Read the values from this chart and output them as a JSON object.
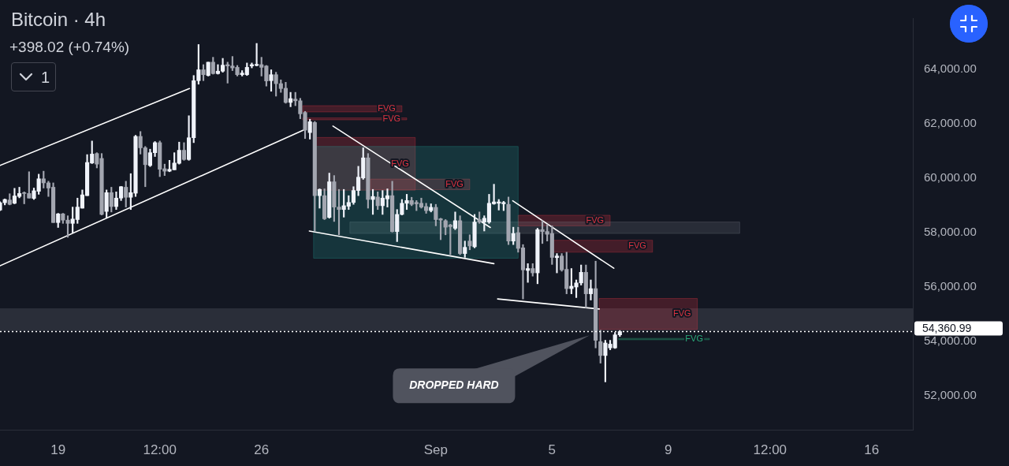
{
  "chart_data": {
    "type": "candlestick",
    "title": "Bitcoin · 4h",
    "subtitle": "+398.02 (+0.74%)",
    "annotations": [
      "1",
      {
        "text": "DROPPED HARD",
        "x": "--09-06T07:00",
        "y": 54220
      }
    ],
    "xlim": [
      "--08-17T00:00",
      "--09-17T10:00"
    ],
    "xticks": [
      {
        "value": "--08-19",
        "label": "19"
      },
      {
        "value": "--08-22T12:00",
        "label": "12:00"
      },
      {
        "value": "--08-26",
        "label": "26"
      },
      {
        "value": "--09-01",
        "label": "Sep"
      },
      {
        "value": "--09-05",
        "label": "5"
      },
      {
        "value": "--09-09",
        "label": "9"
      },
      {
        "value": "--09-12T12:00",
        "label": "12:00"
      },
      {
        "value": "--09-16",
        "label": "16"
      }
    ],
    "ylim": [
      50750,
      65890
    ],
    "yticks": [
      {
        "value": 52000,
        "label": "52,000.00"
      },
      {
        "value": 54000,
        "label": "54,000.00"
      },
      {
        "value": 56000,
        "label": "56,000.00"
      },
      {
        "value": 58000,
        "label": "58,000.00"
      },
      {
        "value": 60000,
        "label": "60,000.00"
      },
      {
        "value": 62000,
        "label": "62,000.00"
      },
      {
        "value": 64000,
        "label": "64,000.00"
      }
    ],
    "bands": [
      {
        "axis": "y",
        "from": 54390,
        "to": 55220,
        "color": "#2a2e39"
      }
    ],
    "ref_lines": [
      {
        "axis": "y",
        "value": 54360.99,
        "label": "54,360.99",
        "line_style": "dotted",
        "color": "#ffffff"
      }
    ],
    "series": [
      {
        "type": "area",
        "name": "FVG",
        "color": "#f23645",
        "x": [
          "--08-27T10:00",
          "--08-30T20:00"
        ],
        "values": [
          null,
          null
        ],
        "lower": [
          62440,
          62440
        ],
        "upper": [
          62670,
          62670
        ]
      },
      {
        "type": "area",
        "name": "FVG",
        "color": "#f23645",
        "x": [
          "--08-27T10:00",
          "--08-31T00:00"
        ],
        "values": [
          null,
          null
        ],
        "lower": [
          62150,
          62150
        ],
        "upper": [
          62220,
          62220
        ]
      },
      {
        "type": "area",
        "name": "FVG",
        "color": "#f23645",
        "x": [
          "--08-27T19:00",
          "--08-31T07:00"
        ],
        "values": [
          null,
          null
        ],
        "lower": [
          59560,
          59560
        ],
        "upper": [
          61500,
          61500
        ]
      },
      {
        "type": "area",
        "name": "FVG",
        "color": "#f23645",
        "x": [
          "--08-29T18:00",
          "--09-02T04:00"
        ],
        "values": [
          null,
          null
        ],
        "lower": [
          59580,
          59580
        ],
        "upper": [
          59970,
          59970
        ]
      },
      {
        "type": "area",
        "name": "FVG",
        "color": "#f23645",
        "x": [
          "--09-03T20:00",
          "--09-07T00:00"
        ],
        "values": [
          null,
          null
        ],
        "lower": [
          58250,
          58250
        ],
        "upper": [
          58640,
          58640
        ]
      },
      {
        "type": "area",
        "name": "FVG",
        "color": "#f23645",
        "x": [
          "--09-05T00:00",
          "--09-08T11:00"
        ],
        "values": [
          null,
          null
        ],
        "lower": [
          57280,
          57280
        ],
        "upper": [
          57720,
          57720
        ]
      },
      {
        "type": "area",
        "name": "FVG",
        "color": "#f23645",
        "x": [
          "--09-06T15:00",
          "--09-10T00:00"
        ],
        "values": [
          null,
          null
        ],
        "lower": [
          54440,
          54440
        ],
        "upper": [
          55580,
          55580
        ]
      },
      {
        "type": "area",
        "name": "FVG",
        "color": "#2ebd85",
        "x": [
          "--09-07T07:00",
          "--09-10T10:00"
        ],
        "values": [
          null,
          null
        ],
        "lower": [
          54060,
          54060
        ],
        "upper": [
          54110,
          54110
        ]
      },
      {
        "type": "area",
        "color": "#787b86",
        "x": [
          "--08-29T01:00",
          "--09-11T11:00"
        ],
        "values": [
          null,
          null
        ],
        "lower": [
          57970,
          57970
        ],
        "upper": [
          58390,
          58390
        ]
      },
      {
        "type": "area",
        "color": "#26a69a",
        "x": [
          "--08-27T19:00",
          "--09-03T20:00"
        ],
        "values": [
          null,
          null
        ],
        "lower": [
          57060,
          57060
        ],
        "upper": [
          61170,
          61170
        ]
      },
      {
        "type": "line",
        "color": "#ffffff",
        "x": [
          "--08-17T00:00",
          "--08-23T12:30"
        ],
        "values": [
          60470,
          63300
        ]
      },
      {
        "type": "line",
        "color": "#ffffff",
        "x": [
          "--08-17T00:00",
          "--08-27T11:00"
        ],
        "values": [
          56780,
          61780
        ]
      },
      {
        "type": "line",
        "color": "#ffffff",
        "x": [
          "--08-28T11:00",
          "--09-02T21:00"
        ],
        "values": [
          61920,
          58190
        ]
      },
      {
        "type": "line",
        "color": "#ffffff",
        "x": [
          "--08-27T15:30",
          "--09-03T00:00"
        ],
        "values": [
          58060,
          56860
        ]
      },
      {
        "type": "line",
        "color": "#ffffff",
        "x": [
          "--09-03T15:30",
          "--09-07T03:00"
        ],
        "values": [
          59170,
          56690
        ]
      },
      {
        "type": "line",
        "color": "#ffffff",
        "x": [
          "--09-03T03:00",
          "--09-06T15:00"
        ],
        "values": [
          55560,
          55190
        ]
      },
      {
        "type": "candlestick",
        "color": "#f0f3fa",
        "x": [
          "--08-17T00:00",
          "--08-17T04:00",
          "--08-17T12:00",
          "--08-17T16:00",
          "--08-18T04:00",
          "--08-18T08:00",
          "--08-19T00:00",
          "--08-19T12:00",
          "--08-19T16:00",
          "--08-19T20:00",
          "--08-20T00:00",
          "--08-20T04:00",
          "--08-20T16:00",
          "--08-21T00:00",
          "--08-21T04:00",
          "--08-21T12:00",
          "--08-21T16:00",
          "--08-22T04:00",
          "--08-22T08:00",
          "--08-22T20:00",
          "--08-23T00:00",
          "--08-23T04:00",
          "--08-23T12:00",
          "--08-23T16:00",
          "--08-23T20:00",
          "--08-24T04:00",
          "--08-24T12:00",
          "--08-24T16:00",
          "--08-25T08:00",
          "--08-25T12:00",
          "--08-25T16:00",
          "--08-25T20:00",
          "--08-26T08:00",
          "--08-27T00:00",
          "--08-27T16:00",
          "--08-28T00:00",
          "--08-28T08:00",
          "--08-28T20:00",
          "--08-29T00:00",
          "--08-29T04:00",
          "--08-29T08:00",
          "--08-29T12:00",
          "--08-29T20:00",
          "--08-30T04:00",
          "--08-30T08:00",
          "--08-30T16:00",
          "--08-30T20:00",
          "--08-31T00:00",
          "--08-31T20:00",
          "--09-01T16:00",
          "--09-02T00:00",
          "--09-02T08:00",
          "--09-02T16:00",
          "--09-02T20:00",
          "--09-03T00:00",
          "--09-03T04:00",
          "--09-03T08:00",
          "--09-03T16:00",
          "--09-04T04:00",
          "--09-04T12:00",
          "--09-05T04:00",
          "--09-05T16:00",
          "--09-05T20:00",
          "--09-06T00:00",
          "--09-06T08:00",
          "--09-06T20:00",
          "--09-07T00:00",
          "--09-07T04:00",
          "--09-07T08:00"
        ],
        "ohlc": [
          [
            58830,
            59140,
            58810,
            59100
          ],
          [
            59100,
            59240,
            59020,
            59220
          ],
          [
            59080,
            59630,
            59060,
            59350
          ],
          [
            59330,
            59670,
            59280,
            59440
          ],
          [
            59260,
            59640,
            59220,
            59540
          ],
          [
            59520,
            60150,
            59410,
            59980
          ],
          [
            58370,
            58710,
            58190,
            58690
          ],
          [
            58340,
            58940,
            57990,
            58500
          ],
          [
            58480,
            59270,
            58340,
            58940
          ],
          [
            58900,
            59570,
            58900,
            59390
          ],
          [
            59360,
            60870,
            59360,
            60580
          ],
          [
            60560,
            61370,
            60540,
            60890
          ],
          [
            58780,
            59570,
            58530,
            59470
          ],
          [
            58960,
            59500,
            58850,
            59270
          ],
          [
            59270,
            59700,
            59180,
            59690
          ],
          [
            59300,
            60170,
            58850,
            59470
          ],
          [
            59450,
            61580,
            59330,
            61540
          ],
          [
            60470,
            61070,
            60430,
            60940
          ],
          [
            60940,
            61350,
            60800,
            61310
          ],
          [
            60260,
            60660,
            60240,
            60330
          ],
          [
            60310,
            60940,
            60310,
            60560
          ],
          [
            60550,
            61330,
            60520,
            61030
          ],
          [
            60690,
            62300,
            60660,
            61490
          ],
          [
            61490,
            63780,
            61310,
            63590
          ],
          [
            63590,
            64920,
            63460,
            63990
          ],
          [
            63780,
            64270,
            63760,
            64270
          ],
          [
            63850,
            64180,
            63830,
            63940
          ],
          [
            63940,
            64410,
            63900,
            64160
          ],
          [
            63810,
            63960,
            63760,
            63870
          ],
          [
            63810,
            64240,
            63780,
            64080
          ],
          [
            64130,
            64240,
            64060,
            64180
          ],
          [
            64150,
            64960,
            64130,
            64190
          ],
          [
            63590,
            63990,
            63200,
            63810
          ],
          [
            62790,
            63160,
            62630,
            62930
          ],
          [
            61680,
            62170,
            61440,
            62080
          ],
          [
            59360,
            59610,
            58900,
            59590
          ],
          [
            58560,
            60190,
            58530,
            59870
          ],
          [
            58850,
            59590,
            58570,
            58990
          ],
          [
            58970,
            59360,
            58850,
            59110
          ],
          [
            59110,
            59690,
            59040,
            59550
          ],
          [
            59550,
            60440,
            59360,
            60040
          ],
          [
            60010,
            61120,
            59960,
            60750
          ],
          [
            59220,
            59590,
            58670,
            59330
          ],
          [
            58990,
            59550,
            58670,
            59270
          ],
          [
            59240,
            59610,
            58940,
            59360
          ],
          [
            58040,
            58850,
            57670,
            58670
          ],
          [
            58670,
            59220,
            58650,
            59080
          ],
          [
            59080,
            59410,
            58850,
            59180
          ],
          [
            58810,
            59060,
            58760,
            58930
          ],
          [
            58160,
            58760,
            58110,
            58440
          ],
          [
            57230,
            57690,
            57090,
            57460
          ],
          [
            57480,
            58670,
            57440,
            58390
          ],
          [
            58390,
            58620,
            58060,
            58530
          ],
          [
            58390,
            59410,
            58340,
            59080
          ],
          [
            59060,
            59780,
            59040,
            59130
          ],
          [
            59080,
            59220,
            58830,
            59130
          ],
          [
            59060,
            59150,
            58810,
            59110
          ],
          [
            57690,
            58200,
            57560,
            57970
          ],
          [
            56610,
            56860,
            56170,
            56680
          ],
          [
            56520,
            58160,
            56120,
            58110
          ],
          [
            57080,
            57230,
            56520,
            57140
          ],
          [
            55940,
            56680,
            55750,
            56030
          ],
          [
            56000,
            56260,
            55610,
            56150
          ],
          [
            56150,
            56810,
            56070,
            56540
          ],
          [
            55750,
            56260,
            55520,
            55940
          ],
          [
            53480,
            54040,
            52510,
            53940
          ],
          [
            53760,
            54040,
            53690,
            53900
          ],
          [
            53760,
            54330,
            53740,
            54240
          ],
          [
            54240,
            54400,
            54180,
            54361
          ]
        ]
      },
      {
        "type": "candlestick",
        "color": "#a3a6b0",
        "x": [
          "--08-17T08:00",
          "--08-17T20:00",
          "--08-18T00:00",
          "--08-18T12:00",
          "--08-18T16:00",
          "--08-18T20:00",
          "--08-19T04:00",
          "--08-19T08:00",
          "--08-20T08:00",
          "--08-20T12:00",
          "--08-20T20:00",
          "--08-21T08:00",
          "--08-21T20:00",
          "--08-22T00:00",
          "--08-22T12:00",
          "--08-22T16:00",
          "--08-23T08:00",
          "--08-24T00:00",
          "--08-24T08:00",
          "--08-24T20:00",
          "--08-25T00:00",
          "--08-25T04:00",
          "--08-26T00:00",
          "--08-26T04:00",
          "--08-26T12:00",
          "--08-26T16:00",
          "--08-26T20:00",
          "--08-27T04:00",
          "--08-27T08:00",
          "--08-27T12:00",
          "--08-27T20:00",
          "--08-28T04:00",
          "--08-28T12:00",
          "--08-28T16:00",
          "--08-29T16:00",
          "--08-30T00:00",
          "--08-30T12:00",
          "--08-31T04:00",
          "--08-31T08:00",
          "--08-31T12:00",
          "--08-31T16:00",
          "--09-01T00:00",
          "--09-01T04:00",
          "--09-01T08:00",
          "--09-01T12:00",
          "--09-01T20:00",
          "--09-02T04:00",
          "--09-02T12:00",
          "--09-03T12:00",
          "--09-03T20:00",
          "--09-04T00:00",
          "--09-04T08:00",
          "--09-04T16:00",
          "--09-04T20:00",
          "--09-05T00:00",
          "--09-05T08:00",
          "--09-05T12:00",
          "--09-06T04:00",
          "--09-06T12:00",
          "--09-06T16:00"
        ],
        "ohlc": [
          [
            59200,
            59430,
            59020,
            59040
          ],
          [
            59460,
            59500,
            59060,
            59440
          ],
          [
            59440,
            60240,
            59270,
            59270
          ],
          [
            59980,
            60260,
            59640,
            59830
          ],
          [
            59830,
            59890,
            59330,
            59640
          ],
          [
            59670,
            59830,
            58370,
            58370
          ],
          [
            58690,
            58710,
            58340,
            58460
          ],
          [
            58460,
            58620,
            57830,
            58340
          ],
          [
            60910,
            60940,
            60380,
            60520
          ],
          [
            60730,
            60910,
            58650,
            58670
          ],
          [
            59470,
            59670,
            58760,
            58960
          ],
          [
            59670,
            59890,
            58940,
            59300
          ],
          [
            61540,
            61720,
            60890,
            61120
          ],
          [
            61120,
            61170,
            59690,
            60500
          ],
          [
            61310,
            61370,
            60060,
            60330
          ],
          [
            60350,
            60520,
            60100,
            60260
          ],
          [
            61030,
            61310,
            60660,
            60690
          ],
          [
            63990,
            64180,
            63590,
            63810
          ],
          [
            64270,
            64450,
            63830,
            63850
          ],
          [
            64180,
            64270,
            63500,
            64130
          ],
          [
            64130,
            64480,
            63960,
            64060
          ],
          [
            64080,
            64150,
            63760,
            63810
          ],
          [
            64180,
            64450,
            63760,
            64080
          ],
          [
            64130,
            64150,
            63390,
            63580
          ],
          [
            63810,
            63900,
            63020,
            63480
          ],
          [
            63480,
            63620,
            63160,
            63300
          ],
          [
            63310,
            63530,
            62760,
            62790
          ],
          [
            62910,
            63160,
            62670,
            62850
          ],
          [
            62850,
            62940,
            62190,
            62370
          ],
          [
            62420,
            62460,
            61460,
            61770
          ],
          [
            62050,
            62090,
            58060,
            59360
          ],
          [
            59360,
            59610,
            58480,
            58510
          ],
          [
            59870,
            60100,
            58410,
            58940
          ],
          [
            58940,
            59590,
            57920,
            58850
          ],
          [
            60750,
            60910,
            58900,
            59220
          ],
          [
            59310,
            59500,
            58850,
            58990
          ],
          [
            59360,
            59890,
            58020,
            58040
          ],
          [
            59180,
            59300,
            58990,
            59040
          ],
          [
            59110,
            59180,
            58810,
            59060
          ],
          [
            59080,
            59270,
            58900,
            58940
          ],
          [
            58960,
            59080,
            58710,
            58810
          ],
          [
            58930,
            59040,
            58250,
            58480
          ],
          [
            58510,
            58530,
            57740,
            58460
          ],
          [
            58440,
            58480,
            57920,
            58200
          ],
          [
            58280,
            58310,
            57190,
            58220
          ],
          [
            58440,
            58620,
            57190,
            57230
          ],
          [
            57690,
            57920,
            57370,
            57510
          ],
          [
            58480,
            58760,
            58340,
            58390
          ],
          [
            59040,
            59310,
            57560,
            57690
          ],
          [
            58000,
            58200,
            57280,
            57420
          ],
          [
            57440,
            57560,
            55560,
            56630
          ],
          [
            56680,
            56860,
            56400,
            56520
          ],
          [
            58110,
            58440,
            57600,
            58040
          ],
          [
            58040,
            58300,
            57690,
            57940
          ],
          [
            57970,
            58250,
            56830,
            57090
          ],
          [
            57140,
            57230,
            56580,
            56630
          ],
          [
            56650,
            57280,
            55750,
            55940
          ],
          [
            56540,
            56810,
            55240,
            55750
          ],
          [
            55940,
            56950,
            53760,
            54040
          ],
          [
            53990,
            54410,
            53200,
            53480
          ]
        ]
      }
    ]
  }
}
